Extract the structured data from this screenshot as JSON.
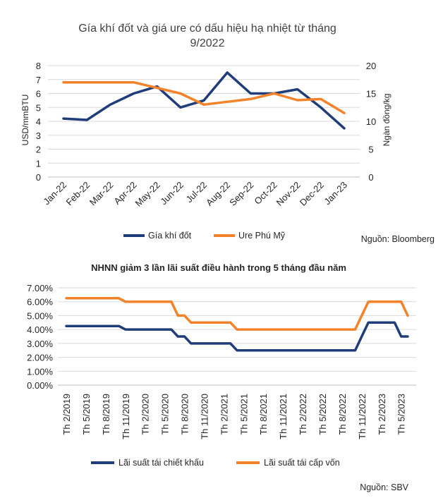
{
  "chart_data": [
    {
      "type": "line",
      "title_line1": "Gía khí đốt và giá ure có dấu hiệu hạ nhiệt từ tháng",
      "title_line2": "9/2022",
      "categories": [
        "Jan-22",
        "Feb-22",
        "Mar-22",
        "Apr-22",
        "May-22",
        "Jun-22",
        "Jul-22",
        "Aug-22",
        "Sep-22",
        "Oct-22",
        "Nov-22",
        "Dec-22",
        "Jan-23"
      ],
      "ylabel_left": "USD/mmBTU",
      "ylabel_right": "Ngàn đồng/kg",
      "ylim_left": [
        0,
        8
      ],
      "yticks_left": [
        "0",
        "1",
        "2",
        "3",
        "4",
        "5",
        "6",
        "7",
        "8"
      ],
      "ylim_right": [
        0,
        20
      ],
      "yticks_right": [
        "0",
        "5",
        "10",
        "15",
        "20"
      ],
      "series": [
        {
          "name": "Gía khí đốt",
          "axis": "left",
          "color": "#1f3d7a",
          "values": [
            4.2,
            4.1,
            5.2,
            6.0,
            6.5,
            5.0,
            5.5,
            7.5,
            6.0,
            6.0,
            6.3,
            5.0,
            3.5
          ]
        },
        {
          "name": "Ure Phú Mỹ",
          "axis": "right",
          "color": "#f4822a",
          "values": [
            17.0,
            17.0,
            17.0,
            17.0,
            16.0,
            15.0,
            13.0,
            13.5,
            14.0,
            15.0,
            13.8,
            14.0,
            11.5
          ]
        }
      ],
      "source": "Nguồn: Bloomberg"
    },
    {
      "type": "line",
      "title": "NHNN giảm 3 lần lãi suất điều hành trong 5 tháng đầu năm",
      "n_points": 53,
      "tick_labels": [
        "Th 2/2019",
        "Th 5/2019",
        "Th 8/2019",
        "Th 11/2019",
        "Th 2/2020",
        "Th 5/2020",
        "Th 8/2020",
        "Th 11/2020",
        "Th 2/2021",
        "Th 5/2021",
        "Th 8/2021",
        "Th 11/2021",
        "Th 2/2022",
        "Th 5/2022",
        "Th 8/2022",
        "Th 11/2022",
        "Th 2/2023",
        "Th 5/2023"
      ],
      "ylim": [
        0,
        7
      ],
      "yticks": [
        "0.00%",
        "1.00%",
        "2.00%",
        "3.00%",
        "4.00%",
        "5.00%",
        "6.00%",
        "7.00%"
      ],
      "series": [
        {
          "name": "Lãi suất tái chiết khấu",
          "color": "#1f3d7a",
          "values": [
            4.25,
            4.25,
            4.25,
            4.25,
            4.25,
            4.25,
            4.25,
            4.25,
            4.25,
            4,
            4,
            4,
            4,
            4,
            4,
            4,
            4,
            3.5,
            3.5,
            3,
            3,
            3,
            3,
            3,
            3,
            3,
            2.5,
            2.5,
            2.5,
            2.5,
            2.5,
            2.5,
            2.5,
            2.5,
            2.5,
            2.5,
            2.5,
            2.5,
            2.5,
            2.5,
            2.5,
            2.5,
            2.5,
            2.5,
            2.5,
            3.5,
            4.5,
            4.5,
            4.5,
            4.5,
            4.5,
            3.5,
            3.5
          ]
        },
        {
          "name": "Lãi suất tái cấp vốn",
          "color": "#f4822a",
          "values": [
            6.25,
            6.25,
            6.25,
            6.25,
            6.25,
            6.25,
            6.25,
            6.25,
            6.25,
            6,
            6,
            6,
            6,
            6,
            6,
            6,
            6,
            5,
            5,
            4.5,
            4.5,
            4.5,
            4.5,
            4.5,
            4.5,
            4.5,
            4,
            4,
            4,
            4,
            4,
            4,
            4,
            4,
            4,
            4,
            4,
            4,
            4,
            4,
            4,
            4,
            4,
            4,
            4,
            5,
            6,
            6,
            6,
            6,
            6,
            6,
            5
          ]
        }
      ],
      "source": "Nguồn: SBV"
    }
  ]
}
